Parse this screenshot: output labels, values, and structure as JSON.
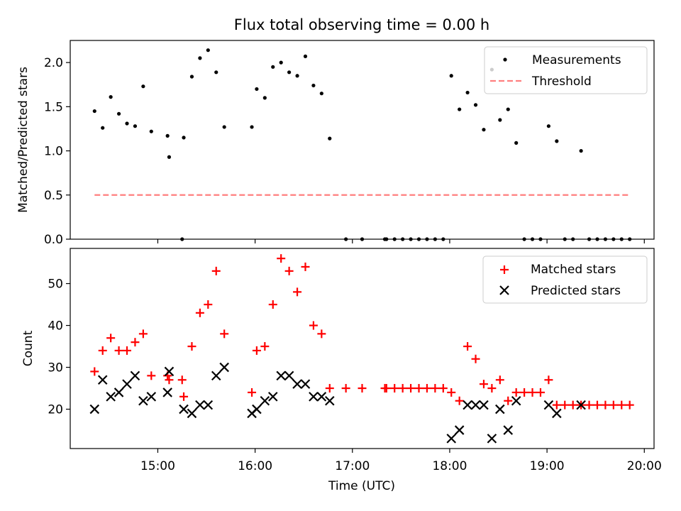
{
  "title": "Flux total observing time = 0.00 h",
  "colors": {
    "measurements": "#000000",
    "threshold": "#ff7f7f",
    "matched": "#ff0000",
    "predicted": "#000000",
    "axes": "#000000"
  },
  "chart_data": [
    {
      "type": "scatter",
      "panel": "top",
      "title": "Flux total observing time = 0.00 h",
      "xlabel": "",
      "ylabel": "Matched/Predicted stars",
      "xlim": [
        "14:06",
        "20:06"
      ],
      "ylim": [
        0,
        2.25
      ],
      "x_ticks": [
        "15:00",
        "16:00",
        "17:00",
        "18:00",
        "19:00",
        "20:00"
      ],
      "y_ticks": [
        {
          "value": 0.0,
          "label": "0.0"
        },
        {
          "value": 0.5,
          "label": "0.5"
        },
        {
          "value": 1.0,
          "label": "1.0"
        },
        {
          "value": 1.5,
          "label": "1.5"
        },
        {
          "value": 2.0,
          "label": "2.0"
        }
      ],
      "legend_position": "top-right",
      "series": [
        {
          "name": "Measurements",
          "style": "points",
          "points": [
            [
              "14:21",
              1.45
            ],
            [
              "14:26",
              1.26
            ],
            [
              "14:31",
              1.61
            ],
            [
              "14:36",
              1.42
            ],
            [
              "14:41",
              1.31
            ],
            [
              "14:46",
              1.28
            ],
            [
              "14:51",
              1.73
            ],
            [
              "14:56",
              1.22
            ],
            [
              "15:06",
              1.17
            ],
            [
              "15:07",
              0.93
            ],
            [
              "15:15",
              0.0
            ],
            [
              "15:16",
              1.15
            ],
            [
              "15:21",
              1.84
            ],
            [
              "15:26",
              2.05
            ],
            [
              "15:31",
              2.14
            ],
            [
              "15:36",
              1.89
            ],
            [
              "15:41",
              1.27
            ],
            [
              "15:58",
              1.27
            ],
            [
              "16:01",
              1.7
            ],
            [
              "16:06",
              1.6
            ],
            [
              "16:11",
              1.95
            ],
            [
              "16:16",
              2.0
            ],
            [
              "16:21",
              1.89
            ],
            [
              "16:26",
              1.85
            ],
            [
              "16:31",
              2.07
            ],
            [
              "16:36",
              1.74
            ],
            [
              "16:41",
              1.65
            ],
            [
              "16:46",
              1.14
            ],
            [
              "16:56",
              0.0
            ],
            [
              "17:06",
              0.0
            ],
            [
              "17:20",
              0.0
            ],
            [
              "17:21",
              0.0
            ],
            [
              "17:26",
              0.0
            ],
            [
              "17:31",
              0.0
            ],
            [
              "17:36",
              0.0
            ],
            [
              "17:41",
              0.0
            ],
            [
              "17:46",
              0.0
            ],
            [
              "17:51",
              0.0
            ],
            [
              "17:56",
              0.0
            ],
            [
              "18:01",
              1.85
            ],
            [
              "18:06",
              1.47
            ],
            [
              "18:11",
              1.66
            ],
            [
              "18:16",
              1.52
            ],
            [
              "18:21",
              1.24
            ],
            [
              "18:26",
              1.92
            ],
            [
              "18:31",
              1.35
            ],
            [
              "18:36",
              1.47
            ],
            [
              "18:41",
              1.09
            ],
            [
              "18:46",
              0.0
            ],
            [
              "18:51",
              0.0
            ],
            [
              "18:56",
              0.0
            ],
            [
              "19:01",
              1.28
            ],
            [
              "19:06",
              1.11
            ],
            [
              "19:11",
              0.0
            ],
            [
              "19:16",
              0.0
            ],
            [
              "19:21",
              1.0
            ],
            [
              "19:26",
              0.0
            ],
            [
              "19:31",
              0.0
            ],
            [
              "19:36",
              0.0
            ],
            [
              "19:41",
              0.0
            ],
            [
              "19:46",
              0.0
            ],
            [
              "19:51",
              0.0
            ]
          ]
        },
        {
          "name": "Threshold",
          "style": "dashed-line",
          "points": [
            [
              "14:21",
              0.5
            ],
            [
              "19:51",
              0.5
            ]
          ]
        }
      ]
    },
    {
      "type": "scatter",
      "panel": "bottom",
      "title": "",
      "xlabel": "Time (UTC)",
      "ylabel": "Count",
      "xlim": [
        "14:06",
        "20:06"
      ],
      "ylim": [
        10.6,
        58.4
      ],
      "x_ticks": [
        "15:00",
        "16:00",
        "17:00",
        "18:00",
        "19:00",
        "20:00"
      ],
      "y_ticks": [
        {
          "value": 20,
          "label": "20"
        },
        {
          "value": 30,
          "label": "30"
        },
        {
          "value": 40,
          "label": "40"
        },
        {
          "value": 50,
          "label": "50"
        }
      ],
      "legend_position": "top-right",
      "series": [
        {
          "name": "Matched stars",
          "marker": "plus",
          "points": [
            [
              "14:21",
              29
            ],
            [
              "14:26",
              34
            ],
            [
              "14:31",
              37
            ],
            [
              "14:36",
              34
            ],
            [
              "14:41",
              34
            ],
            [
              "14:46",
              36
            ],
            [
              "14:51",
              38
            ],
            [
              "14:56",
              28
            ],
            [
              "15:06",
              28
            ],
            [
              "15:07",
              27
            ],
            [
              "15:15",
              27
            ],
            [
              "15:16",
              23
            ],
            [
              "15:21",
              35
            ],
            [
              "15:26",
              43
            ],
            [
              "15:31",
              45
            ],
            [
              "15:36",
              53
            ],
            [
              "15:41",
              38
            ],
            [
              "15:58",
              24
            ],
            [
              "16:01",
              34
            ],
            [
              "16:06",
              35
            ],
            [
              "16:11",
              45
            ],
            [
              "16:16",
              56
            ],
            [
              "16:21",
              53
            ],
            [
              "16:26",
              48
            ],
            [
              "16:31",
              54
            ],
            [
              "16:36",
              40
            ],
            [
              "16:41",
              38
            ],
            [
              "16:46",
              25
            ],
            [
              "16:56",
              25
            ],
            [
              "17:06",
              25
            ],
            [
              "17:20",
              25
            ],
            [
              "17:21",
              25
            ],
            [
              "17:26",
              25
            ],
            [
              "17:31",
              25
            ],
            [
              "17:36",
              25
            ],
            [
              "17:41",
              25
            ],
            [
              "17:46",
              25
            ],
            [
              "17:51",
              25
            ],
            [
              "17:56",
              25
            ],
            [
              "18:01",
              24
            ],
            [
              "18:06",
              22
            ],
            [
              "18:11",
              35
            ],
            [
              "18:16",
              32
            ],
            [
              "18:21",
              26
            ],
            [
              "18:26",
              25
            ],
            [
              "18:31",
              27
            ],
            [
              "18:36",
              22
            ],
            [
              "18:41",
              24
            ],
            [
              "18:46",
              24
            ],
            [
              "18:51",
              24
            ],
            [
              "18:56",
              24
            ],
            [
              "19:01",
              27
            ],
            [
              "19:06",
              21
            ],
            [
              "19:11",
              21
            ],
            [
              "19:16",
              21
            ],
            [
              "19:21",
              21
            ],
            [
              "19:26",
              21
            ],
            [
              "19:31",
              21
            ],
            [
              "19:36",
              21
            ],
            [
              "19:41",
              21
            ],
            [
              "19:46",
              21
            ],
            [
              "19:51",
              21
            ]
          ]
        },
        {
          "name": "Predicted stars",
          "marker": "x",
          "points": [
            [
              "14:21",
              20
            ],
            [
              "14:26",
              27
            ],
            [
              "14:31",
              23
            ],
            [
              "14:36",
              24
            ],
            [
              "14:41",
              26
            ],
            [
              "14:46",
              28
            ],
            [
              "14:51",
              22
            ],
            [
              "14:56",
              23
            ],
            [
              "15:06",
              24
            ],
            [
              "15:07",
              29
            ],
            [
              "15:16",
              20
            ],
            [
              "15:21",
              19
            ],
            [
              "15:26",
              21
            ],
            [
              "15:31",
              21
            ],
            [
              "15:36",
              28
            ],
            [
              "15:41",
              30
            ],
            [
              "15:58",
              19
            ],
            [
              "16:01",
              20
            ],
            [
              "16:06",
              22
            ],
            [
              "16:11",
              23
            ],
            [
              "16:16",
              28
            ],
            [
              "16:21",
              28
            ],
            [
              "16:26",
              26
            ],
            [
              "16:31",
              26
            ],
            [
              "16:36",
              23
            ],
            [
              "16:41",
              23
            ],
            [
              "16:46",
              22
            ],
            [
              "18:01",
              13
            ],
            [
              "18:06",
              15
            ],
            [
              "18:11",
              21
            ],
            [
              "18:16",
              21
            ],
            [
              "18:21",
              21
            ],
            [
              "18:26",
              13
            ],
            [
              "18:31",
              20
            ],
            [
              "18:36",
              15
            ],
            [
              "18:41",
              22
            ],
            [
              "19:01",
              21
            ],
            [
              "19:06",
              19
            ],
            [
              "19:21",
              21
            ]
          ]
        }
      ]
    }
  ]
}
